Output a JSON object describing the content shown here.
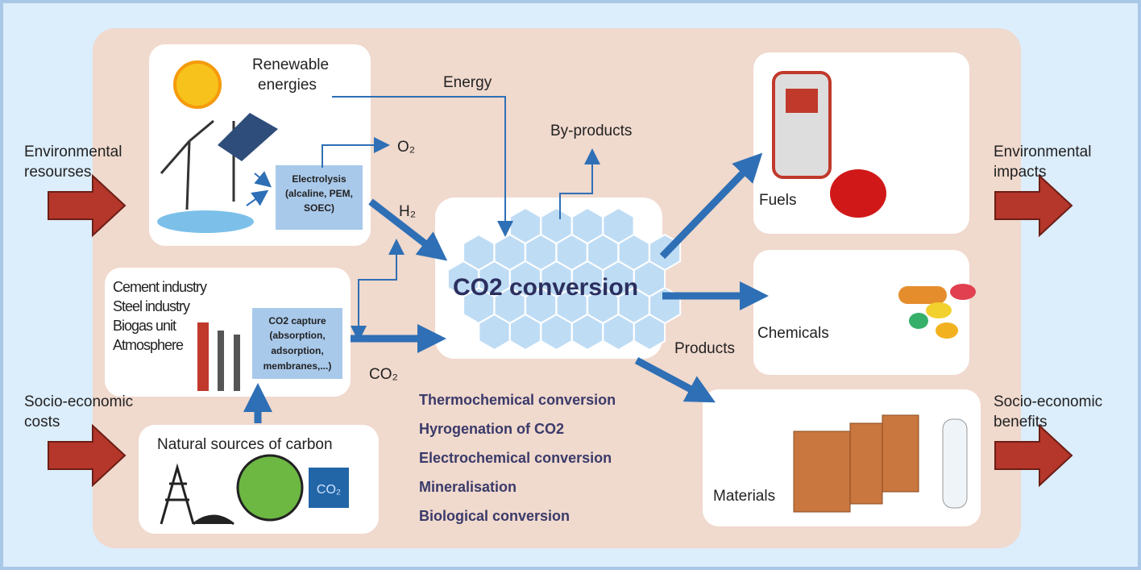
{
  "left_labels": {
    "environmental_resources": [
      "Environmental",
      "resourses"
    ],
    "socio_economic_costs": [
      "Socio-economic",
      "costs"
    ]
  },
  "right_labels": {
    "environmental_impacts": [
      "Environmental",
      "impacts"
    ],
    "socio_economic_benefits": [
      "Socio-economic",
      "benefits"
    ]
  },
  "renewable": {
    "title": [
      "Renewable",
      "energies"
    ],
    "electrolysis": [
      "Electrolysis",
      "(alcaline, PEM,",
      "SOEC)"
    ]
  },
  "flows": {
    "energy": "Energy",
    "by_products": "By-products",
    "o2": "O₂",
    "h2": "H₂",
    "co2": "CO₂",
    "products": "Products"
  },
  "industry": {
    "sources": [
      "Cement industry",
      "Steel industry",
      "Biogas unit",
      "Atmosphere"
    ],
    "capture": [
      "CO2 capture",
      "(absorption,",
      "adsorption,",
      "membranes,...)"
    ]
  },
  "natural": {
    "title": "Natural sources of carbon",
    "icon": "CO₂"
  },
  "center": {
    "title": "CO2 conversion"
  },
  "methods": [
    "Thermochemical conversion",
    "Hyrogenation of CO2",
    "Electrochemical conversion",
    "Mineralisation",
    "Biological conversion"
  ],
  "outputs": {
    "fuels": "Fuels",
    "chemicals": "Chemicals",
    "materials": "Materials"
  }
}
